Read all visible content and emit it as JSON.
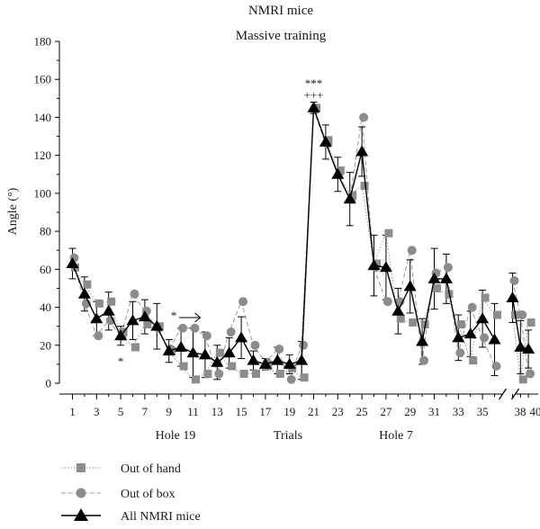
{
  "chart_data": {
    "type": "line",
    "title": "NMRI mice",
    "subtitle": "Massive training",
    "ylabel": "Angle (°)",
    "xlabel": "Trials",
    "ylim": [
      0,
      180
    ],
    "yticks": [
      0,
      20,
      40,
      60,
      80,
      100,
      120,
      140,
      160,
      180
    ],
    "x": [
      1,
      2,
      3,
      4,
      5,
      6,
      7,
      8,
      9,
      10,
      11,
      12,
      13,
      14,
      15,
      16,
      17,
      18,
      19,
      20,
      21,
      22,
      23,
      24,
      25,
      26,
      27,
      28,
      29,
      30,
      31,
      32,
      33,
      34,
      35,
      36,
      37,
      38,
      39
    ],
    "xtick_labels": [
      "1",
      "3",
      "5",
      "7",
      "9",
      "11",
      "13",
      "15",
      "17",
      "19",
      "21",
      "23",
      "25",
      "27",
      "29",
      "31",
      "33",
      "35",
      "38",
      "40"
    ],
    "axis_break": "between trial 36 and 37",
    "group_labels": [
      {
        "text": "Hole 19"
      },
      {
        "text": "Trials"
      },
      {
        "text": "Hole 7"
      }
    ],
    "annotations": [
      {
        "text": "***",
        "x": 21
      },
      {
        "text": "+++",
        "x": 21
      },
      {
        "text": "*",
        "x": 5
      },
      {
        "text": "*",
        "x": 10
      }
    ],
    "legend_position": "bottom-left",
    "series": [
      {
        "name": "Out of hand",
        "marker": "square",
        "line": "dotted",
        "values": [
          61,
          52,
          42,
          43,
          27,
          19,
          31,
          30,
          17,
          9,
          2,
          5,
          16,
          9,
          5,
          5,
          9,
          5,
          8,
          3,
          145,
          128,
          112,
          99,
          104,
          63,
          79,
          34,
          32,
          31,
          50,
          47,
          31,
          12,
          45,
          36,
          36,
          2,
          32
        ]
      },
      {
        "name": "Out of box",
        "marker": "circle",
        "line": "dashed",
        "values": [
          66,
          42,
          25,
          33,
          25,
          47,
          38,
          29,
          18,
          29,
          29,
          25,
          5,
          27,
          43,
          20,
          11,
          18,
          2,
          20,
          144,
          126,
          111,
          97,
          140,
          61,
          43,
          43,
          70,
          12,
          58,
          61,
          16,
          40,
          24,
          9,
          54,
          36,
          5
        ]
      },
      {
        "name": "All NMRI mice",
        "marker": "triangle",
        "line": "solid",
        "values": [
          63,
          47,
          34,
          38,
          25,
          33,
          35,
          30,
          17,
          19,
          16,
          15,
          11,
          16,
          24,
          12,
          10,
          12,
          10,
          12,
          145,
          127,
          110,
          97,
          122,
          62,
          61,
          38,
          51,
          22,
          55,
          55,
          24,
          26,
          34,
          23,
          45,
          19,
          18
        ],
        "error": [
          8,
          9,
          9,
          10,
          5,
          10,
          9,
          12,
          6,
          10,
          13,
          12,
          9,
          8,
          11,
          5,
          3,
          7,
          5,
          10,
          3,
          9,
          9,
          14,
          13,
          16,
          17,
          12,
          14,
          12,
          16,
          13,
          12,
          12,
          15,
          19,
          13,
          14,
          10
        ]
      }
    ],
    "colors": {
      "gray_marker": "#8c8c8c",
      "black": "#000000"
    }
  }
}
